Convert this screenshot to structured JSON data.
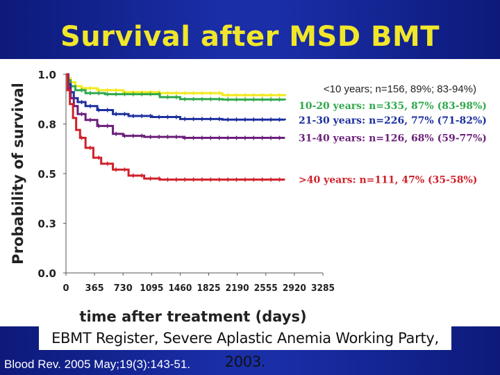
{
  "slide": {
    "title": "Survival after MSD BMT",
    "source_banner": "EBMT Register, Severe Aplastic Anemia Working Party, 2003.",
    "citation": "Blood Rev. 2005 May;19(3):143-51."
  },
  "chart_data": {
    "type": "line",
    "title": "",
    "xlabel": "time after treatment (days)",
    "ylabel": "Probability of survival",
    "xlim": [
      0,
      3285
    ],
    "ylim": [
      0,
      1.0
    ],
    "x_ticks": [
      0,
      365,
      730,
      1095,
      1460,
      1825,
      2190,
      2555,
      2920,
      3285
    ],
    "y_ticks": [
      0.0,
      0.25,
      0.5,
      0.75,
      1.0
    ],
    "y_tick_labels": [
      "0.0",
      "0.3",
      "0.5",
      "0.8",
      "1.0"
    ],
    "grid": false,
    "series": [
      {
        "name": "<10 years",
        "label": "<10 years; n=156, 89%; 83-94%)",
        "color": "#f2ea1c",
        "points": [
          [
            0,
            1.0
          ],
          [
            30,
            0.98
          ],
          [
            60,
            0.96
          ],
          [
            120,
            0.94
          ],
          [
            200,
            0.93
          ],
          [
            400,
            0.92
          ],
          [
            730,
            0.91
          ],
          [
            1200,
            0.905
          ],
          [
            2000,
            0.895
          ],
          [
            2800,
            0.89
          ]
        ]
      },
      {
        "name": "10-20 years",
        "label": "10-20 years: n=335, 87% (83-98%)",
        "color": "#2fa84a",
        "points": [
          [
            0,
            1.0
          ],
          [
            30,
            0.97
          ],
          [
            60,
            0.94
          ],
          [
            120,
            0.92
          ],
          [
            250,
            0.905
          ],
          [
            500,
            0.9
          ],
          [
            1200,
            0.885
          ],
          [
            1460,
            0.875
          ],
          [
            2000,
            0.873
          ],
          [
            2800,
            0.87
          ]
        ]
      },
      {
        "name": "21-30 years",
        "label": "21-30 years: n=226, 77% (71-82%)",
        "color": "#1c2f9e",
        "points": [
          [
            0,
            1.0
          ],
          [
            30,
            0.95
          ],
          [
            60,
            0.91
          ],
          [
            100,
            0.88
          ],
          [
            150,
            0.86
          ],
          [
            250,
            0.84
          ],
          [
            400,
            0.82
          ],
          [
            600,
            0.8
          ],
          [
            800,
            0.79
          ],
          [
            1100,
            0.785
          ],
          [
            1460,
            0.775
          ],
          [
            2000,
            0.772
          ],
          [
            2800,
            0.77
          ]
        ]
      },
      {
        "name": "31-40 years",
        "label": "31-40 years: n=126, 68% (59-77%)",
        "color": "#6b1f7a",
        "points": [
          [
            0,
            1.0
          ],
          [
            30,
            0.93
          ],
          [
            60,
            0.88
          ],
          [
            100,
            0.84
          ],
          [
            150,
            0.8
          ],
          [
            250,
            0.77
          ],
          [
            400,
            0.74
          ],
          [
            600,
            0.7
          ],
          [
            730,
            0.69
          ],
          [
            1000,
            0.685
          ],
          [
            1500,
            0.68
          ],
          [
            2000,
            0.68
          ],
          [
            2800,
            0.68
          ]
        ]
      },
      {
        "name": ">40 years",
        "label": ">40 years: n=111, 47% (35-58%)",
        "color": "#d0202a",
        "points": [
          [
            0,
            1.0
          ],
          [
            20,
            0.92
          ],
          [
            50,
            0.85
          ],
          [
            90,
            0.78
          ],
          [
            130,
            0.72
          ],
          [
            180,
            0.68
          ],
          [
            250,
            0.63
          ],
          [
            350,
            0.58
          ],
          [
            450,
            0.55
          ],
          [
            600,
            0.52
          ],
          [
            800,
            0.49
          ],
          [
            1000,
            0.475
          ],
          [
            1200,
            0.47
          ],
          [
            2000,
            0.47
          ],
          [
            2800,
            0.47
          ]
        ]
      }
    ]
  }
}
